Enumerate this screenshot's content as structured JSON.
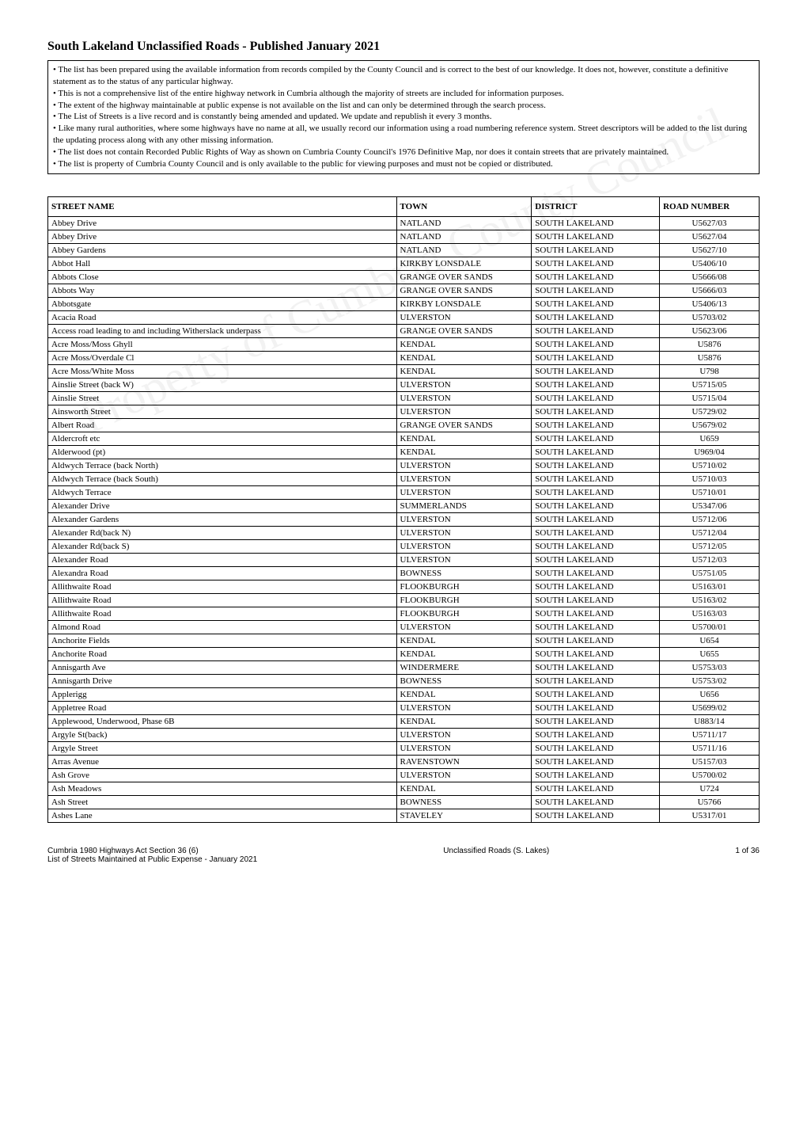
{
  "title": "South Lakeland Unclassified Roads - Published January 2021",
  "watermark": "Property of Cumbria County Council",
  "notes": [
    "• The list has been prepared using the available information from records compiled by the County Council and is correct to the best of our knowledge. It does not, however, constitute a definitive statement as to the status of any particular highway.",
    "• This is not a comprehensive list of the entire highway network in Cumbria although the majority of streets are included for information purposes.",
    "• The extent of the highway maintainable at public expense is not available on the list and can only be determined through the search process.",
    "• The List of Streets is a live record and is constantly being amended and updated. We update and republish it every 3 months.",
    "• Like many rural authorities, where some highways have no name at all, we usually record our information using a road numbering reference system. Street descriptors will be added to the list during the updating process along with any other missing information.",
    "• The list does not contain Recorded Public Rights of Way as shown on Cumbria County Council's 1976 Definitive Map, nor does it contain streets that are privately maintained.",
    "• The list is property of Cumbria County Council and is only available to the public for viewing purposes and must not be copied or distributed."
  ],
  "table": {
    "columns": [
      "STREET NAME",
      "TOWN",
      "DISTRICT",
      "ROAD NUMBER"
    ],
    "rows": [
      [
        "Abbey Drive",
        "NATLAND",
        "SOUTH LAKELAND",
        "U5627/03"
      ],
      [
        "Abbey Drive",
        "NATLAND",
        "SOUTH LAKELAND",
        "U5627/04"
      ],
      [
        "Abbey Gardens",
        "NATLAND",
        "SOUTH LAKELAND",
        "U5627/10"
      ],
      [
        "Abbot Hall",
        "KIRKBY LONSDALE",
        "SOUTH LAKELAND",
        "U5406/10"
      ],
      [
        "Abbots Close",
        "GRANGE OVER SANDS",
        "SOUTH LAKELAND",
        "U5666/08"
      ],
      [
        "Abbots Way",
        "GRANGE OVER SANDS",
        "SOUTH LAKELAND",
        "U5666/03"
      ],
      [
        "Abbotsgate",
        "KIRKBY LONSDALE",
        "SOUTH LAKELAND",
        "U5406/13"
      ],
      [
        "Acacia Road",
        "ULVERSTON",
        "SOUTH LAKELAND",
        "U5703/02"
      ],
      [
        "Access road leading to and including Witherslack underpass",
        "GRANGE OVER SANDS",
        "SOUTH LAKELAND",
        "U5623/06"
      ],
      [
        "Acre Moss/Moss Ghyll",
        "KENDAL",
        "SOUTH LAKELAND",
        "U5876"
      ],
      [
        "Acre Moss/Overdale Cl",
        "KENDAL",
        "SOUTH LAKELAND",
        "U5876"
      ],
      [
        "Acre Moss/White Moss",
        "KENDAL",
        "SOUTH LAKELAND",
        "U798"
      ],
      [
        "Ainslie Street (back W)",
        "ULVERSTON",
        "SOUTH LAKELAND",
        "U5715/05"
      ],
      [
        "Ainslie Street",
        "ULVERSTON",
        "SOUTH LAKELAND",
        "U5715/04"
      ],
      [
        "Ainsworth Street",
        "ULVERSTON",
        "SOUTH LAKELAND",
        "U5729/02"
      ],
      [
        "Albert Road",
        "GRANGE OVER SANDS",
        "SOUTH LAKELAND",
        "U5679/02"
      ],
      [
        "Aldercroft etc",
        "KENDAL",
        "SOUTH LAKELAND",
        "U659"
      ],
      [
        "Alderwood (pt)",
        "KENDAL",
        "SOUTH LAKELAND",
        "U969/04"
      ],
      [
        "Aldwych Terrace (back North)",
        "ULVERSTON",
        "SOUTH LAKELAND",
        "U5710/02"
      ],
      [
        "Aldwych Terrace (back South)",
        "ULVERSTON",
        "SOUTH LAKELAND",
        "U5710/03"
      ],
      [
        "Aldwych Terrace",
        "ULVERSTON",
        "SOUTH LAKELAND",
        "U5710/01"
      ],
      [
        "Alexander Drive",
        "SUMMERLANDS",
        "SOUTH LAKELAND",
        "U5347/06"
      ],
      [
        "Alexander Gardens",
        "ULVERSTON",
        "SOUTH LAKELAND",
        "U5712/06"
      ],
      [
        "Alexander Rd(back N)",
        "ULVERSTON",
        "SOUTH LAKELAND",
        "U5712/04"
      ],
      [
        "Alexander Rd(back S)",
        "ULVERSTON",
        "SOUTH LAKELAND",
        "U5712/05"
      ],
      [
        "Alexander Road",
        "ULVERSTON",
        "SOUTH LAKELAND",
        "U5712/03"
      ],
      [
        "Alexandra Road",
        "BOWNESS",
        "SOUTH LAKELAND",
        "U5751/05"
      ],
      [
        "Allithwaite Road",
        "FLOOKBURGH",
        "SOUTH LAKELAND",
        "U5163/01"
      ],
      [
        "Allithwaite Road",
        "FLOOKBURGH",
        "SOUTH LAKELAND",
        "U5163/02"
      ],
      [
        "Allithwaite Road",
        "FLOOKBURGH",
        "SOUTH LAKELAND",
        "U5163/03"
      ],
      [
        "Almond Road",
        "ULVERSTON",
        "SOUTH LAKELAND",
        "U5700/01"
      ],
      [
        "Anchorite Fields",
        "KENDAL",
        "SOUTH LAKELAND",
        "U654"
      ],
      [
        "Anchorite Road",
        "KENDAL",
        "SOUTH LAKELAND",
        "U655"
      ],
      [
        "Annisgarth Ave",
        "WINDERMERE",
        "SOUTH LAKELAND",
        "U5753/03"
      ],
      [
        "Annisgarth Drive",
        "BOWNESS",
        "SOUTH LAKELAND",
        "U5753/02"
      ],
      [
        "Applerigg",
        "KENDAL",
        "SOUTH LAKELAND",
        "U656"
      ],
      [
        "Appletree Road",
        "ULVERSTON",
        "SOUTH LAKELAND",
        "U5699/02"
      ],
      [
        "Applewood, Underwood, Phase 6B",
        "KENDAL",
        "SOUTH LAKELAND",
        "U883/14"
      ],
      [
        "Argyle St(back)",
        "ULVERSTON",
        "SOUTH LAKELAND",
        "U5711/17"
      ],
      [
        "Argyle Street",
        "ULVERSTON",
        "SOUTH LAKELAND",
        "U5711/16"
      ],
      [
        "Arras Avenue",
        "RAVENSTOWN",
        "SOUTH LAKELAND",
        "U5157/03"
      ],
      [
        "Ash Grove",
        "ULVERSTON",
        "SOUTH LAKELAND",
        "U5700/02"
      ],
      [
        "Ash Meadows",
        "KENDAL",
        "SOUTH LAKELAND",
        "U724"
      ],
      [
        "Ash Street",
        "BOWNESS",
        "SOUTH LAKELAND",
        "U5766"
      ],
      [
        "Ashes Lane",
        "STAVELEY",
        "SOUTH LAKELAND",
        "U5317/01"
      ]
    ]
  },
  "footer": {
    "left1": "Cumbria 1980 Highways Act Section 36 (6)",
    "left2": "List of Streets Maintained at Public Expense - January 2021",
    "center": "Unclassified Roads (S. Lakes)",
    "right": "1 of 36"
  }
}
